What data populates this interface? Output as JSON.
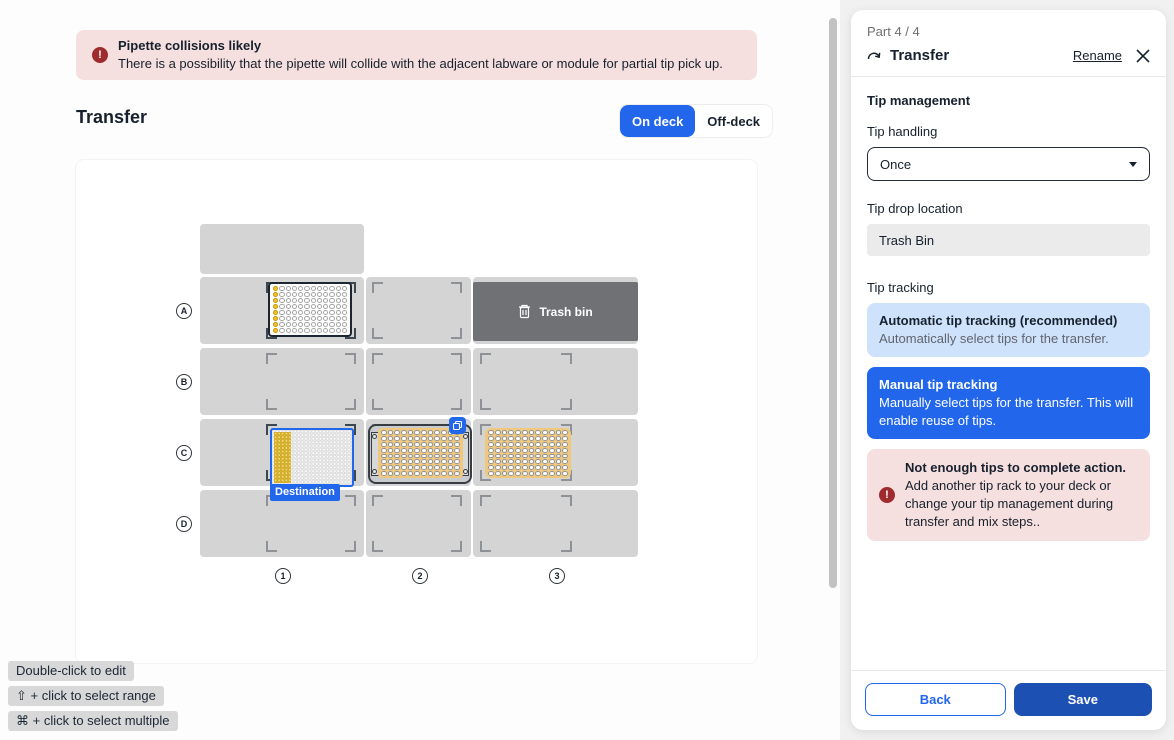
{
  "banner": {
    "title": "Pipette collisions likely",
    "description": "There is a possibility that the pipette will collide with the adjacent labware or module for partial tip pick up."
  },
  "main": {
    "title": "Transfer",
    "toggle": {
      "on_deck": "On deck",
      "off_deck": "Off-deck"
    },
    "deck": {
      "rows": [
        "A",
        "B",
        "C",
        "D"
      ],
      "columns": [
        "1",
        "2",
        "3"
      ],
      "trash_label": "Trash bin",
      "destination_tag": "Destination"
    },
    "hints": [
      "Double-click to edit",
      "⇧ + click to select range",
      "⌘ + click to select multiple"
    ]
  },
  "panel": {
    "part": "Part 4 / 4",
    "title": "Transfer",
    "rename_label": "Rename",
    "section_title": "Tip management",
    "tip_handling": {
      "label": "Tip handling",
      "value": "Once"
    },
    "tip_drop": {
      "label": "Tip drop location",
      "value": "Trash Bin"
    },
    "tip_tracking": {
      "label": "Tip tracking",
      "automatic": {
        "title": "Automatic tip tracking (recommended)",
        "description": "Automatically select tips for the transfer."
      },
      "manual": {
        "title": "Manual tip tracking",
        "description": "Manually select tips for the transfer. This will enable reuse of tips."
      }
    },
    "error": {
      "title": "Not enough tips to complete action.",
      "description": "Add another tip rack to your deck or change your tip management during transfer and mix steps.."
    },
    "back_label": "Back",
    "save_label": "Save"
  },
  "colors": {
    "primary_blue": "#2166eb",
    "save_blue": "#1d50b3",
    "light_blue_card": "#cfe2fb",
    "error_bg": "#f6dfdf",
    "error_icon": "#9e2b2e",
    "tip_yellow": "#eec32d",
    "plate_orange": "#f0c87d",
    "slot_gray": "#d4d4d4",
    "trash_gray": "#6f7175"
  }
}
